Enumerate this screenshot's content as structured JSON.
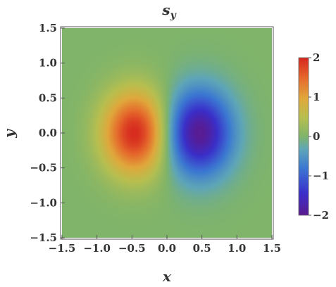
{
  "chart_data": {
    "type": "heatmap",
    "title": "s",
    "title_subscript": "y",
    "xlabel": "x",
    "ylabel": "y",
    "xlim": [
      -1.5,
      1.5
    ],
    "ylim": [
      -1.5,
      1.5
    ],
    "x_ticks": [
      "−1.5",
      "−1.0",
      "−0.5",
      "0.0",
      "0.5",
      "1.0",
      "1.5"
    ],
    "x_tick_values": [
      -1.5,
      -1.0,
      -0.5,
      0.0,
      0.5,
      1.0,
      1.5
    ],
    "y_ticks": [
      "1.5",
      "1.0",
      "0.5",
      "0.0",
      "−0.5",
      "−1.0",
      "−1.5"
    ],
    "y_tick_values": [
      1.5,
      1.0,
      0.5,
      0.0,
      -0.5,
      -1.0,
      -1.5
    ],
    "colorbar": {
      "range": [
        -2,
        2
      ],
      "ticks": [
        "2",
        "1",
        "0",
        "−1",
        "−2"
      ],
      "tick_values": [
        2,
        1,
        0,
        -1,
        -2
      ],
      "placement": "right"
    },
    "field": {
      "lobes": [
        {
          "x": -0.45,
          "y": 0.0,
          "value": 2.0
        },
        {
          "x": 0.45,
          "y": 0.0,
          "value": -2.0
        }
      ],
      "sigma_x": 0.33,
      "sigma_y": 0.42,
      "background": 0.0
    },
    "grid": false
  }
}
